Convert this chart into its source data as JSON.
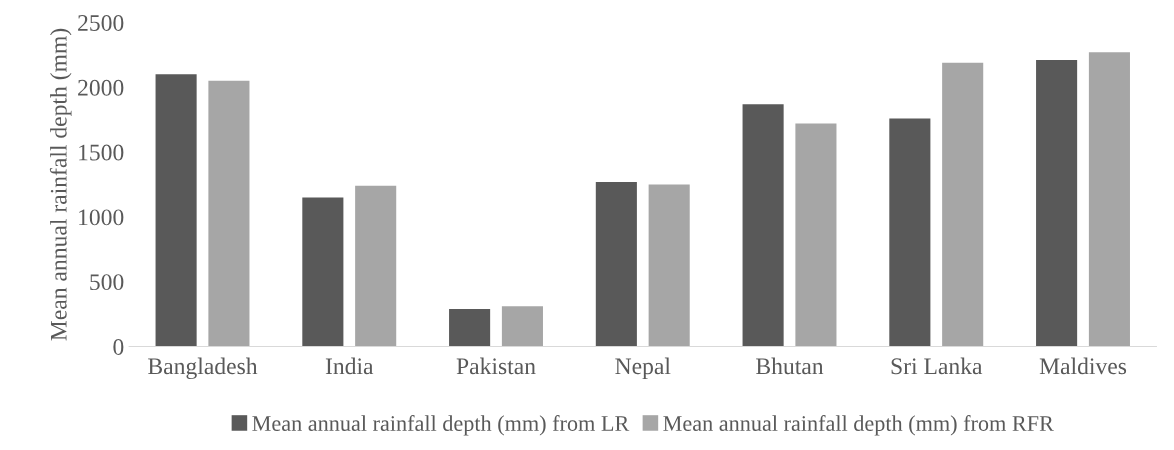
{
  "chart_data": {
    "type": "bar",
    "ylabel": "Mean annual rainfall depth (mm)",
    "categories": [
      "Bangladesh",
      "India",
      "Pakistan",
      "Nepal",
      "Bhutan",
      "Sri Lanka",
      "Maldives"
    ],
    "series": [
      {
        "name": "Mean annual rainfall depth (mm) from LR",
        "color": "#595959",
        "values": [
          2100,
          1150,
          290,
          1270,
          1870,
          1760,
          2210
        ]
      },
      {
        "name": "Mean annual rainfall depth (mm) from RFR",
        "color": "#a6a6a6",
        "values": [
          2050,
          1240,
          310,
          1250,
          1720,
          2190,
          2270
        ]
      }
    ],
    "ylim": [
      0,
      2500
    ],
    "yticks": [
      0,
      500,
      1000,
      1500,
      2000,
      2500
    ],
    "grid": false,
    "legend": "bottom"
  }
}
